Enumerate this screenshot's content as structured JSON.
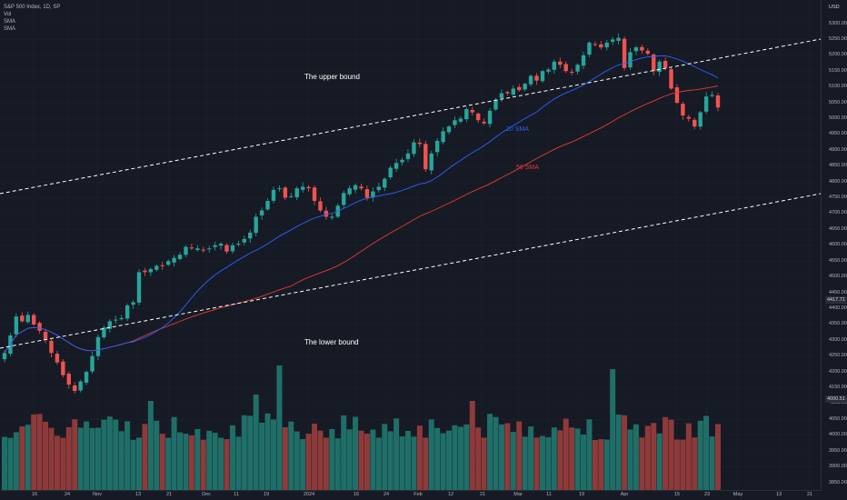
{
  "legend": {
    "symbol": "S&P 500 Index, 1D, SP",
    "vol": "Vol",
    "sma1": "SMA",
    "sma2": "SMA"
  },
  "currency": "USD",
  "annotations": {
    "upper": "The upper bound",
    "lower": "The lower bound",
    "sma20": "20 SMA",
    "sma50": "50 SMA"
  },
  "price_badge": "4417.71",
  "volume_badge": "4000.51",
  "colors": {
    "background": "#161a25",
    "up": "#26a69a",
    "down": "#ef5350",
    "sma20": "#2962ff",
    "sma50": "#e53935",
    "volume_up": "#1f6f68",
    "volume_down": "#8e3a3a",
    "text": "#b2b5be"
  },
  "chart_data": {
    "type": "candlestick",
    "title": "S&P 500 Index, 1D, SP",
    "y_ticks": [
      "5300.00",
      "5250.00",
      "5200.00",
      "5150.00",
      "5100.00",
      "5050.00",
      "5000.00",
      "4950.00",
      "4900.00",
      "4850.00",
      "4800.00",
      "4750.00",
      "4700.00",
      "4650.00",
      "4600.00",
      "4550.00",
      "4500.00",
      "4450.00",
      "4400.00",
      "4350.00",
      "4300.00",
      "4250.00",
      "4200.00",
      "4150.00",
      "4100.00",
      "4050.00",
      "4000.00",
      "3950.00",
      "3900.00",
      "3850.00"
    ],
    "x_ticks": [
      "16",
      "24",
      "Nov",
      "13",
      "21",
      "Dec",
      "11",
      "19",
      "2024",
      "16",
      "24",
      "Feb",
      "12",
      "21",
      "Mar",
      "11",
      "19",
      "Apr",
      "15",
      "23",
      "May",
      "13",
      "21"
    ],
    "closes": [
      4260,
      4315,
      4375,
      4360,
      4380,
      4350,
      4330,
      4300,
      4260,
      4230,
      4190,
      4160,
      4140,
      4170,
      4200,
      4250,
      4310,
      4340,
      4360,
      4365,
      4370,
      4410,
      4420,
      4515,
      4515,
      4525,
      4535,
      4535,
      4550,
      4560,
      4570,
      4595,
      4590,
      4590,
      4585,
      4590,
      4600,
      4605,
      4580,
      4600,
      4605,
      4620,
      4640,
      4690,
      4710,
      4740,
      4775,
      4780,
      4750,
      4755,
      4780,
      4785,
      4780,
      4740,
      4710,
      4690,
      4690,
      4725,
      4765,
      4780,
      4790,
      4780,
      4750,
      4770,
      4785,
      4810,
      4845,
      4860,
      4870,
      4890,
      4925,
      4920,
      4840,
      4890,
      4930,
      4960,
      4975,
      4995,
      5000,
      5030,
      5020,
      4995,
      4985,
      5025,
      5060,
      5080,
      5080,
      5095,
      5090,
      5110,
      5135,
      5120,
      5150,
      5155,
      5180,
      5170,
      5150,
      5145,
      5170,
      5200,
      5240,
      5235,
      5225,
      5240,
      5250,
      5255,
      5160,
      5210,
      5225,
      5215,
      5205,
      5150,
      5180,
      5160,
      5095,
      5050,
      5010,
      5000,
      4975,
      5020,
      5070,
      5075,
      5035
    ],
    "bounds": {
      "upper": {
        "start": 4790,
        "end": 5258
      },
      "lower": {
        "start": 4300,
        "end": 4752
      }
    },
    "sma_series": [
      {
        "name": "20 SMA",
        "color": "#2962ff"
      },
      {
        "name": "50 SMA",
        "color": "#e53935"
      }
    ]
  }
}
